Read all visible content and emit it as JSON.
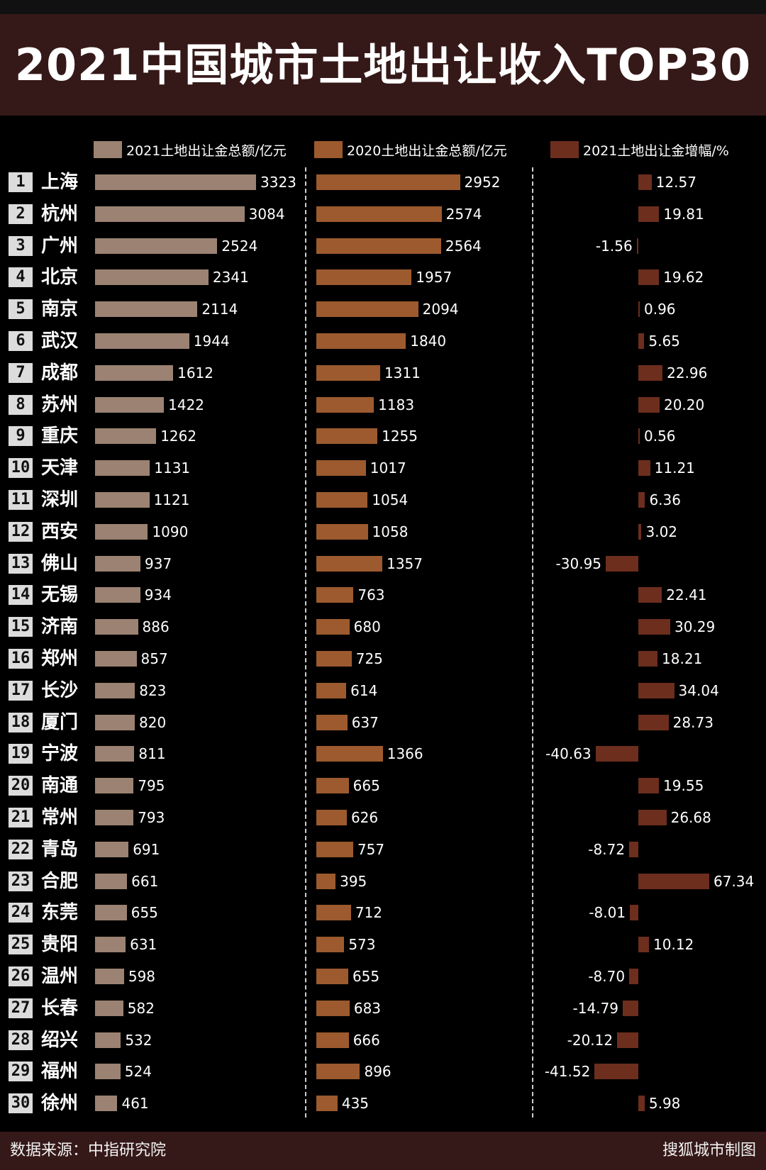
{
  "title": "2021中国城市土地出让收入TOP30",
  "footer": {
    "source": "数据来源：中指研究院",
    "credit": "搜狐城市制图"
  },
  "colors": {
    "bar_2021": "#9b8272",
    "bar_2020": "#9c5a2e",
    "bar_growth": "#6d2e1e",
    "band": "#351918"
  },
  "chart_data": {
    "type": "bar",
    "title": "2021中国城市土地出让收入TOP30",
    "orientation": "horizontal",
    "series": [
      {
        "name": "2021土地出让金总额/亿元",
        "values": [
          3323,
          3084,
          2524,
          2341,
          2114,
          1944,
          1612,
          1422,
          1262,
          1131,
          1121,
          1090,
          937,
          934,
          886,
          857,
          823,
          820,
          811,
          795,
          793,
          691,
          661,
          655,
          631,
          598,
          582,
          532,
          524,
          461
        ]
      },
      {
        "name": "2020土地出让金总额/亿元",
        "values": [
          2952,
          2574,
          2564,
          1957,
          2094,
          1840,
          1311,
          1183,
          1255,
          1017,
          1054,
          1058,
          1357,
          763,
          680,
          725,
          614,
          637,
          1366,
          665,
          626,
          757,
          395,
          712,
          573,
          655,
          683,
          666,
          896,
          435
        ]
      },
      {
        "name": "2021土地出让金增幅/%",
        "values": [
          12.57,
          19.81,
          -1.56,
          19.62,
          0.96,
          5.65,
          22.96,
          20.2,
          0.56,
          11.21,
          6.36,
          3.02,
          -30.95,
          22.41,
          30.29,
          18.21,
          34.04,
          28.73,
          -40.63,
          19.55,
          26.68,
          -8.72,
          67.34,
          -8.01,
          10.12,
          -8.7,
          -14.79,
          -20.12,
          -41.52,
          5.98
        ]
      }
    ],
    "growth_labels": [
      "12.57",
      "19.81",
      "-1.56",
      "19.62",
      "0.96",
      "5.65",
      "22.96",
      "20.20",
      "0.56",
      "11.21",
      "6.36",
      "3.02",
      "-30.95",
      "22.41",
      "30.29",
      "18.21",
      "34.04",
      "28.73",
      "-40.63",
      "19.55",
      "26.68",
      "-8.72",
      "67.34",
      "-8.01",
      "10.12",
      "-8.70",
      "-14.79",
      "-20.12",
      "-41.52",
      "5.98"
    ],
    "categories": [
      "上海",
      "杭州",
      "广州",
      "北京",
      "南京",
      "武汉",
      "成都",
      "苏州",
      "重庆",
      "天津",
      "深圳",
      "西安",
      "佛山",
      "无锡",
      "济南",
      "郑州",
      "长沙",
      "厦门",
      "宁波",
      "南通",
      "常州",
      "青岛",
      "合肥",
      "东莞",
      "贵阳",
      "温州",
      "长春",
      "绍兴",
      "福州",
      "徐州"
    ],
    "ranks": [
      "1",
      "2",
      "3",
      "4",
      "5",
      "6",
      "7",
      "8",
      "9",
      "10",
      "11",
      "12",
      "13",
      "14",
      "15",
      "16",
      "17",
      "18",
      "19",
      "20",
      "21",
      "22",
      "23",
      "24",
      "25",
      "26",
      "27",
      "28",
      "29",
      "30"
    ],
    "xlim_amount": [
      0,
      3323
    ],
    "xlim_growth": [
      -41.52,
      67.34
    ]
  }
}
